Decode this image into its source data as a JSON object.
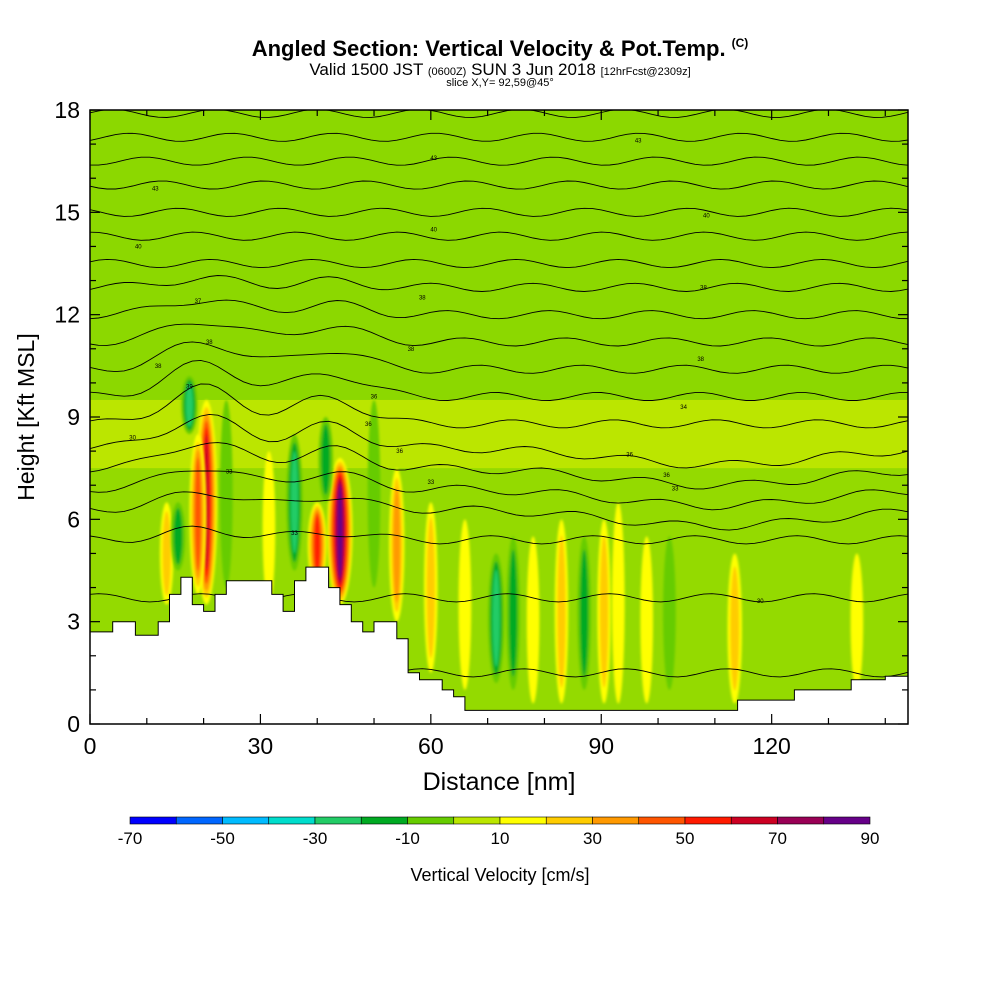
{
  "header": {
    "title": "Angled Section: Vertical Velocity & Pot.Temp.",
    "copyright": "(C)",
    "valid_main": "Valid 1500 JST",
    "valid_utc": "(0600Z)",
    "valid_date": "SUN 3 Jun 2018",
    "forecast": "[12hrFcst@2309z]",
    "slice": "slice X,Y= 92,59@45°"
  },
  "chart_data": {
    "type": "heatmap",
    "title": "Angled Section: Vertical Velocity & Pot.Temp.",
    "xlabel": "Distance [nm]",
    "ylabel": "Height [Kft MSL]",
    "xlim": [
      0,
      144
    ],
    "ylim": [
      0,
      18
    ],
    "x_ticks": [
      "0",
      "30",
      "60",
      "90",
      "120"
    ],
    "y_ticks": [
      "0",
      "3",
      "6",
      "9",
      "12",
      "15",
      "18"
    ],
    "colorbar": {
      "label": "Vertical Velocity [cm/s]",
      "tick_labels": [
        "-70",
        "-50",
        "-30",
        "-10",
        "10",
        "30",
        "50",
        "70",
        "90"
      ],
      "bins": [
        -70,
        -60,
        -50,
        -40,
        -30,
        -20,
        -10,
        0,
        10,
        20,
        30,
        40,
        50,
        60,
        70,
        80,
        90
      ],
      "colors": [
        "#0000ff",
        "#0066ff",
        "#00bbff",
        "#00ddcc",
        "#22cc66",
        "#00aa22",
        "#66cc00",
        "#bbe600",
        "#ffff00",
        "#ffcc00",
        "#ff9900",
        "#ff5500",
        "#ff1a00",
        "#cc0022",
        "#990055",
        "#660088"
      ]
    },
    "background_velocity_cm_s": 5,
    "updrafts": [
      {
        "x": 20.5,
        "z_bottom": 3.5,
        "z_top": 9.5,
        "max_cm_s": 65
      },
      {
        "x": 19.0,
        "z_bottom": 3.8,
        "z_top": 8.5,
        "max_cm_s": 40
      },
      {
        "x": 40.0,
        "z_bottom": 4.0,
        "z_top": 6.5,
        "max_cm_s": 50
      },
      {
        "x": 44.0,
        "z_bottom": 3.5,
        "z_top": 7.8,
        "max_cm_s": 85
      },
      {
        "x": 54.0,
        "z_bottom": 3.0,
        "z_top": 7.5,
        "max_cm_s": 30
      },
      {
        "x": 13.5,
        "z_bottom": 3.5,
        "z_top": 6.5,
        "max_cm_s": 20
      },
      {
        "x": 31.5,
        "z_bottom": 3.5,
        "z_top": 8.0,
        "max_cm_s": 15
      },
      {
        "x": 60.0,
        "z_bottom": 1.5,
        "z_top": 6.5,
        "max_cm_s": 20
      },
      {
        "x": 66.0,
        "z_bottom": 1.0,
        "z_top": 6.0,
        "max_cm_s": 15
      },
      {
        "x": 78.0,
        "z_bottom": 0.6,
        "z_top": 5.5,
        "max_cm_s": 15
      },
      {
        "x": 83.0,
        "z_bottom": 0.6,
        "z_top": 6.0,
        "max_cm_s": 20
      },
      {
        "x": 90.5,
        "z_bottom": 0.6,
        "z_top": 6.0,
        "max_cm_s": 20
      },
      {
        "x": 93.0,
        "z_bottom": 0.6,
        "z_top": 6.5,
        "max_cm_s": 15
      },
      {
        "x": 98.0,
        "z_bottom": 0.6,
        "z_top": 5.5,
        "max_cm_s": 15
      },
      {
        "x": 113.5,
        "z_bottom": 0.6,
        "z_top": 5.0,
        "max_cm_s": 25
      },
      {
        "x": 135.0,
        "z_bottom": 1.0,
        "z_top": 5.0,
        "max_cm_s": 15
      }
    ],
    "downdrafts": [
      {
        "x": 17.5,
        "z_bottom": 8.5,
        "z_top": 10.2,
        "min_cm_s": -35
      },
      {
        "x": 36.0,
        "z_bottom": 4.5,
        "z_top": 8.5,
        "min_cm_s": -35
      },
      {
        "x": 41.5,
        "z_bottom": 6.5,
        "z_top": 9.0,
        "min_cm_s": -25
      },
      {
        "x": 15.5,
        "z_bottom": 4.5,
        "z_top": 6.5,
        "min_cm_s": -25
      },
      {
        "x": 24.0,
        "z_bottom": 4.0,
        "z_top": 9.5,
        "min_cm_s": -15
      },
      {
        "x": 71.5,
        "z_bottom": 1.2,
        "z_top": 5.0,
        "min_cm_s": -35
      },
      {
        "x": 74.5,
        "z_bottom": 1.0,
        "z_top": 5.5,
        "min_cm_s": -20
      },
      {
        "x": 87.0,
        "z_bottom": 1.0,
        "z_top": 5.5,
        "min_cm_s": -20
      },
      {
        "x": 102.0,
        "z_bottom": 1.0,
        "z_top": 5.5,
        "min_cm_s": -15
      },
      {
        "x": 50.0,
        "z_bottom": 4.0,
        "z_top": 9.5,
        "min_cm_s": -15
      }
    ],
    "terrain_kft": [
      [
        0,
        2.7
      ],
      [
        4,
        2.7
      ],
      [
        4,
        3.0
      ],
      [
        8,
        3.0
      ],
      [
        8,
        2.6
      ],
      [
        12,
        2.6
      ],
      [
        12,
        3.0
      ],
      [
        14,
        3.0
      ],
      [
        14,
        3.8
      ],
      [
        16,
        3.8
      ],
      [
        16,
        4.3
      ],
      [
        18,
        4.3
      ],
      [
        18,
        3.5
      ],
      [
        20,
        3.5
      ],
      [
        20,
        3.3
      ],
      [
        22,
        3.3
      ],
      [
        22,
        3.8
      ],
      [
        24,
        3.8
      ],
      [
        24,
        4.2
      ],
      [
        32,
        4.2
      ],
      [
        32,
        3.8
      ],
      [
        34,
        3.8
      ],
      [
        34,
        3.3
      ],
      [
        36,
        3.3
      ],
      [
        36,
        4.2
      ],
      [
        38,
        4.2
      ],
      [
        38,
        4.6
      ],
      [
        42,
        4.6
      ],
      [
        42,
        4.0
      ],
      [
        44,
        4.0
      ],
      [
        44,
        3.5
      ],
      [
        46,
        3.5
      ],
      [
        46,
        3.0
      ],
      [
        48,
        3.0
      ],
      [
        48,
        2.7
      ],
      [
        50,
        2.7
      ],
      [
        50,
        3.0
      ],
      [
        54,
        3.0
      ],
      [
        54,
        2.5
      ],
      [
        56,
        2.5
      ],
      [
        56,
        1.5
      ],
      [
        58,
        1.5
      ],
      [
        58,
        1.3
      ],
      [
        62,
        1.3
      ],
      [
        62,
        1.0
      ],
      [
        64,
        1.0
      ],
      [
        64,
        0.8
      ],
      [
        66,
        0.8
      ],
      [
        66,
        0.4
      ],
      [
        114,
        0.4
      ],
      [
        114,
        0.7
      ],
      [
        124,
        0.7
      ],
      [
        124,
        1.0
      ],
      [
        134,
        1.0
      ],
      [
        134,
        1.3
      ],
      [
        140,
        1.3
      ],
      [
        140,
        1.4
      ],
      [
        144,
        1.4
      ]
    ],
    "theta_contours": {
      "baselines_kft": [
        1.5,
        3.7,
        5.4,
        6.3,
        6.9,
        7.5,
        8.1,
        8.8,
        9.6,
        10.4,
        11.2,
        12.0,
        12.8,
        13.5,
        14.3,
        15.0,
        15.8,
        16.5,
        17.2,
        17.9
      ],
      "labels": [
        {
          "text": "30",
          "x": 118,
          "z": 3.6
        },
        {
          "text": "30",
          "x": 7.5,
          "z": 8.4
        },
        {
          "text": "33",
          "x": 24.5,
          "z": 7.4
        },
        {
          "text": "33",
          "x": 36,
          "z": 5.6
        },
        {
          "text": "33",
          "x": 103,
          "z": 6.9
        },
        {
          "text": "33",
          "x": 60,
          "z": 7.1
        },
        {
          "text": "36",
          "x": 101.5,
          "z": 7.3
        },
        {
          "text": "36",
          "x": 54.5,
          "z": 8.0
        },
        {
          "text": "36",
          "x": 95,
          "z": 7.9
        },
        {
          "text": "36",
          "x": 49,
          "z": 8.8
        },
        {
          "text": "34",
          "x": 104.5,
          "z": 9.3
        },
        {
          "text": "36",
          "x": 50,
          "z": 9.6
        },
        {
          "text": "39",
          "x": 17.5,
          "z": 9.9
        },
        {
          "text": "38",
          "x": 12,
          "z": 10.5
        },
        {
          "text": "38",
          "x": 21,
          "z": 11.2
        },
        {
          "text": "38",
          "x": 56.5,
          "z": 11.0
        },
        {
          "text": "38",
          "x": 107.5,
          "z": 10.7
        },
        {
          "text": "37",
          "x": 19,
          "z": 12.4
        },
        {
          "text": "38",
          "x": 58.5,
          "z": 12.5
        },
        {
          "text": "38",
          "x": 108,
          "z": 12.8
        },
        {
          "text": "40",
          "x": 8.5,
          "z": 14.0
        },
        {
          "text": "40",
          "x": 60.5,
          "z": 14.5
        },
        {
          "text": "40",
          "x": 108.5,
          "z": 14.9
        },
        {
          "text": "43",
          "x": 11.5,
          "z": 15.7
        },
        {
          "text": "43",
          "x": 60.5,
          "z": 16.6
        },
        {
          "text": "43",
          "x": 96.5,
          "z": 17.1
        }
      ]
    }
  }
}
